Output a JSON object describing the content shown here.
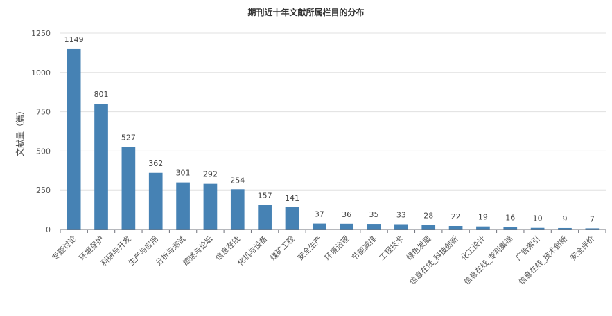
{
  "chart_data": {
    "type": "bar",
    "title": "期刊近十年文献所属栏目的分布",
    "ylabel": "文献量（篇）",
    "xlabel": "",
    "ylim": [
      0,
      1250
    ],
    "yticks": [
      0,
      250,
      500,
      750,
      1000,
      1250
    ],
    "grid": true,
    "categories": [
      "专题讨论",
      "环境保护",
      "科研与开发",
      "生产与应用",
      "分析与测试",
      "综述与论坛",
      "信息在线",
      "化机与设备",
      "煤矿工程",
      "安全生产",
      "环境治理",
      "节能减排",
      "工程技术",
      "绿色发展",
      "信息在线_科技创新",
      "化工设计",
      "信息在线_专利集锦",
      "广告索引",
      "信息在线_技术创新",
      "安全评价"
    ],
    "values": [
      1149,
      801,
      527,
      362,
      301,
      292,
      254,
      157,
      141,
      37,
      36,
      35,
      33,
      28,
      22,
      19,
      16,
      10,
      9,
      7
    ],
    "bar_color": "#4682b4"
  }
}
